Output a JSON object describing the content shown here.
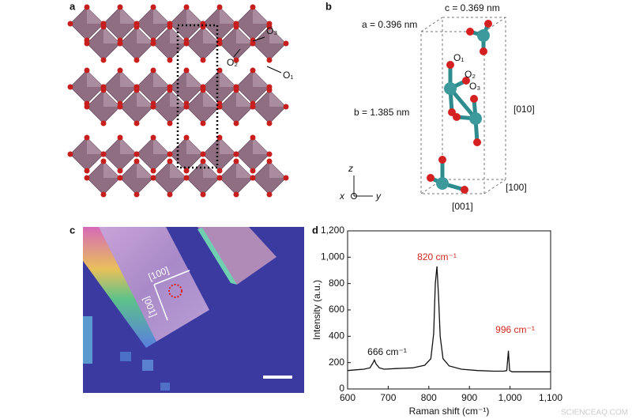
{
  "panels": {
    "a": {
      "label": "a",
      "annotations": [
        "O₃",
        "O₂",
        "O₁"
      ]
    },
    "b": {
      "label": "b",
      "lattice": [
        "a = 0.396 nm",
        "c = 0.369 nm",
        "b = 1.385 nm"
      ],
      "atom_labels": [
        "O₁",
        "O₂",
        "O₃"
      ],
      "directions": [
        "[010]",
        "[100]",
        "[001]"
      ],
      "axes": [
        "z",
        "x",
        "y"
      ]
    },
    "c": {
      "label": "c",
      "directions": [
        "[100]",
        "[001]"
      ]
    },
    "d": {
      "label": "d"
    }
  },
  "chart_data": {
    "type": "line",
    "x": [
      600,
      620,
      640,
      655,
      662,
      666,
      670,
      678,
      690,
      720,
      760,
      790,
      805,
      812,
      816,
      820,
      824,
      828,
      835,
      850,
      880,
      920,
      960,
      985,
      992,
      996,
      999,
      1005,
      1030,
      1060,
      1100
    ],
    "values": [
      140,
      145,
      150,
      160,
      195,
      220,
      190,
      160,
      150,
      155,
      160,
      180,
      230,
      420,
      800,
      930,
      700,
      400,
      230,
      175,
      150,
      140,
      135,
      135,
      140,
      290,
      140,
      130,
      130,
      130,
      130
    ],
    "color": "#111111",
    "xlabel": "Raman shift (cm⁻¹)",
    "ylabel": "Intensity (a.u.)",
    "xlim": [
      600,
      1100
    ],
    "ylim": [
      0,
      1200
    ],
    "xticks": [
      600,
      700,
      800,
      900,
      {
        "value": 1000,
        "label": "1,000"
      },
      {
        "value": 1100,
        "label": "1,100"
      }
    ],
    "yticks": [
      0,
      200,
      400,
      600,
      800,
      {
        "value": 1000,
        "label": "1,000"
      },
      {
        "value": 1200,
        "label": "1,200"
      }
    ],
    "annotations": [
      {
        "text": "820 cm⁻¹",
        "color": "#d0281e"
      },
      {
        "text": "666 cm⁻¹",
        "color": "#111111"
      },
      {
        "text": "996 cm⁻¹",
        "color": "#d0281e"
      }
    ]
  },
  "watermark": "SCIENCEAQ.COM"
}
